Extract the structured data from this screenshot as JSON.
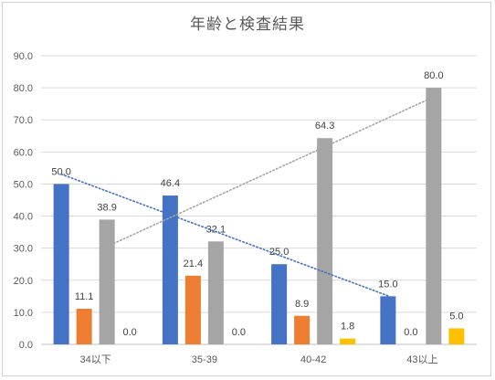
{
  "chart_data": {
    "type": "bar",
    "title": "年齢と検査結果",
    "categories": [
      "34以下",
      "35-39",
      "40-42",
      "43以上"
    ],
    "ylim": [
      0,
      90
    ],
    "yticks": [
      "0.0",
      "10.0",
      "20.0",
      "30.0",
      "40.0",
      "50.0",
      "60.0",
      "70.0",
      "80.0",
      "90.0"
    ],
    "grid": true,
    "series": [
      {
        "values": [
          50.0,
          46.4,
          25.0,
          15.0
        ],
        "labels": [
          "50.0",
          "46.4",
          "25.0",
          "15.0"
        ],
        "color": "#4472C4"
      },
      {
        "values": [
          11.1,
          21.4,
          8.9,
          0.0
        ],
        "labels": [
          "11.1",
          "21.4",
          "8.9",
          "0.0"
        ],
        "color": "#ED7D31"
      },
      {
        "values": [
          38.9,
          32.1,
          64.3,
          80.0
        ],
        "labels": [
          "38.9",
          "32.1",
          "64.3",
          "80.0"
        ],
        "color": "#A5A5A5"
      },
      {
        "values": [
          0.0,
          0.0,
          1.8,
          5.0
        ],
        "labels": [
          "0.0",
          "0.0",
          "1.8",
          "5.0"
        ],
        "color": "#FFC000"
      }
    ],
    "trendlines": [
      {
        "series_index": 0,
        "color": "#4472C4",
        "style": "dotted"
      },
      {
        "series_index": 2,
        "color": "#A5A5A5",
        "style": "dotted"
      }
    ]
  }
}
